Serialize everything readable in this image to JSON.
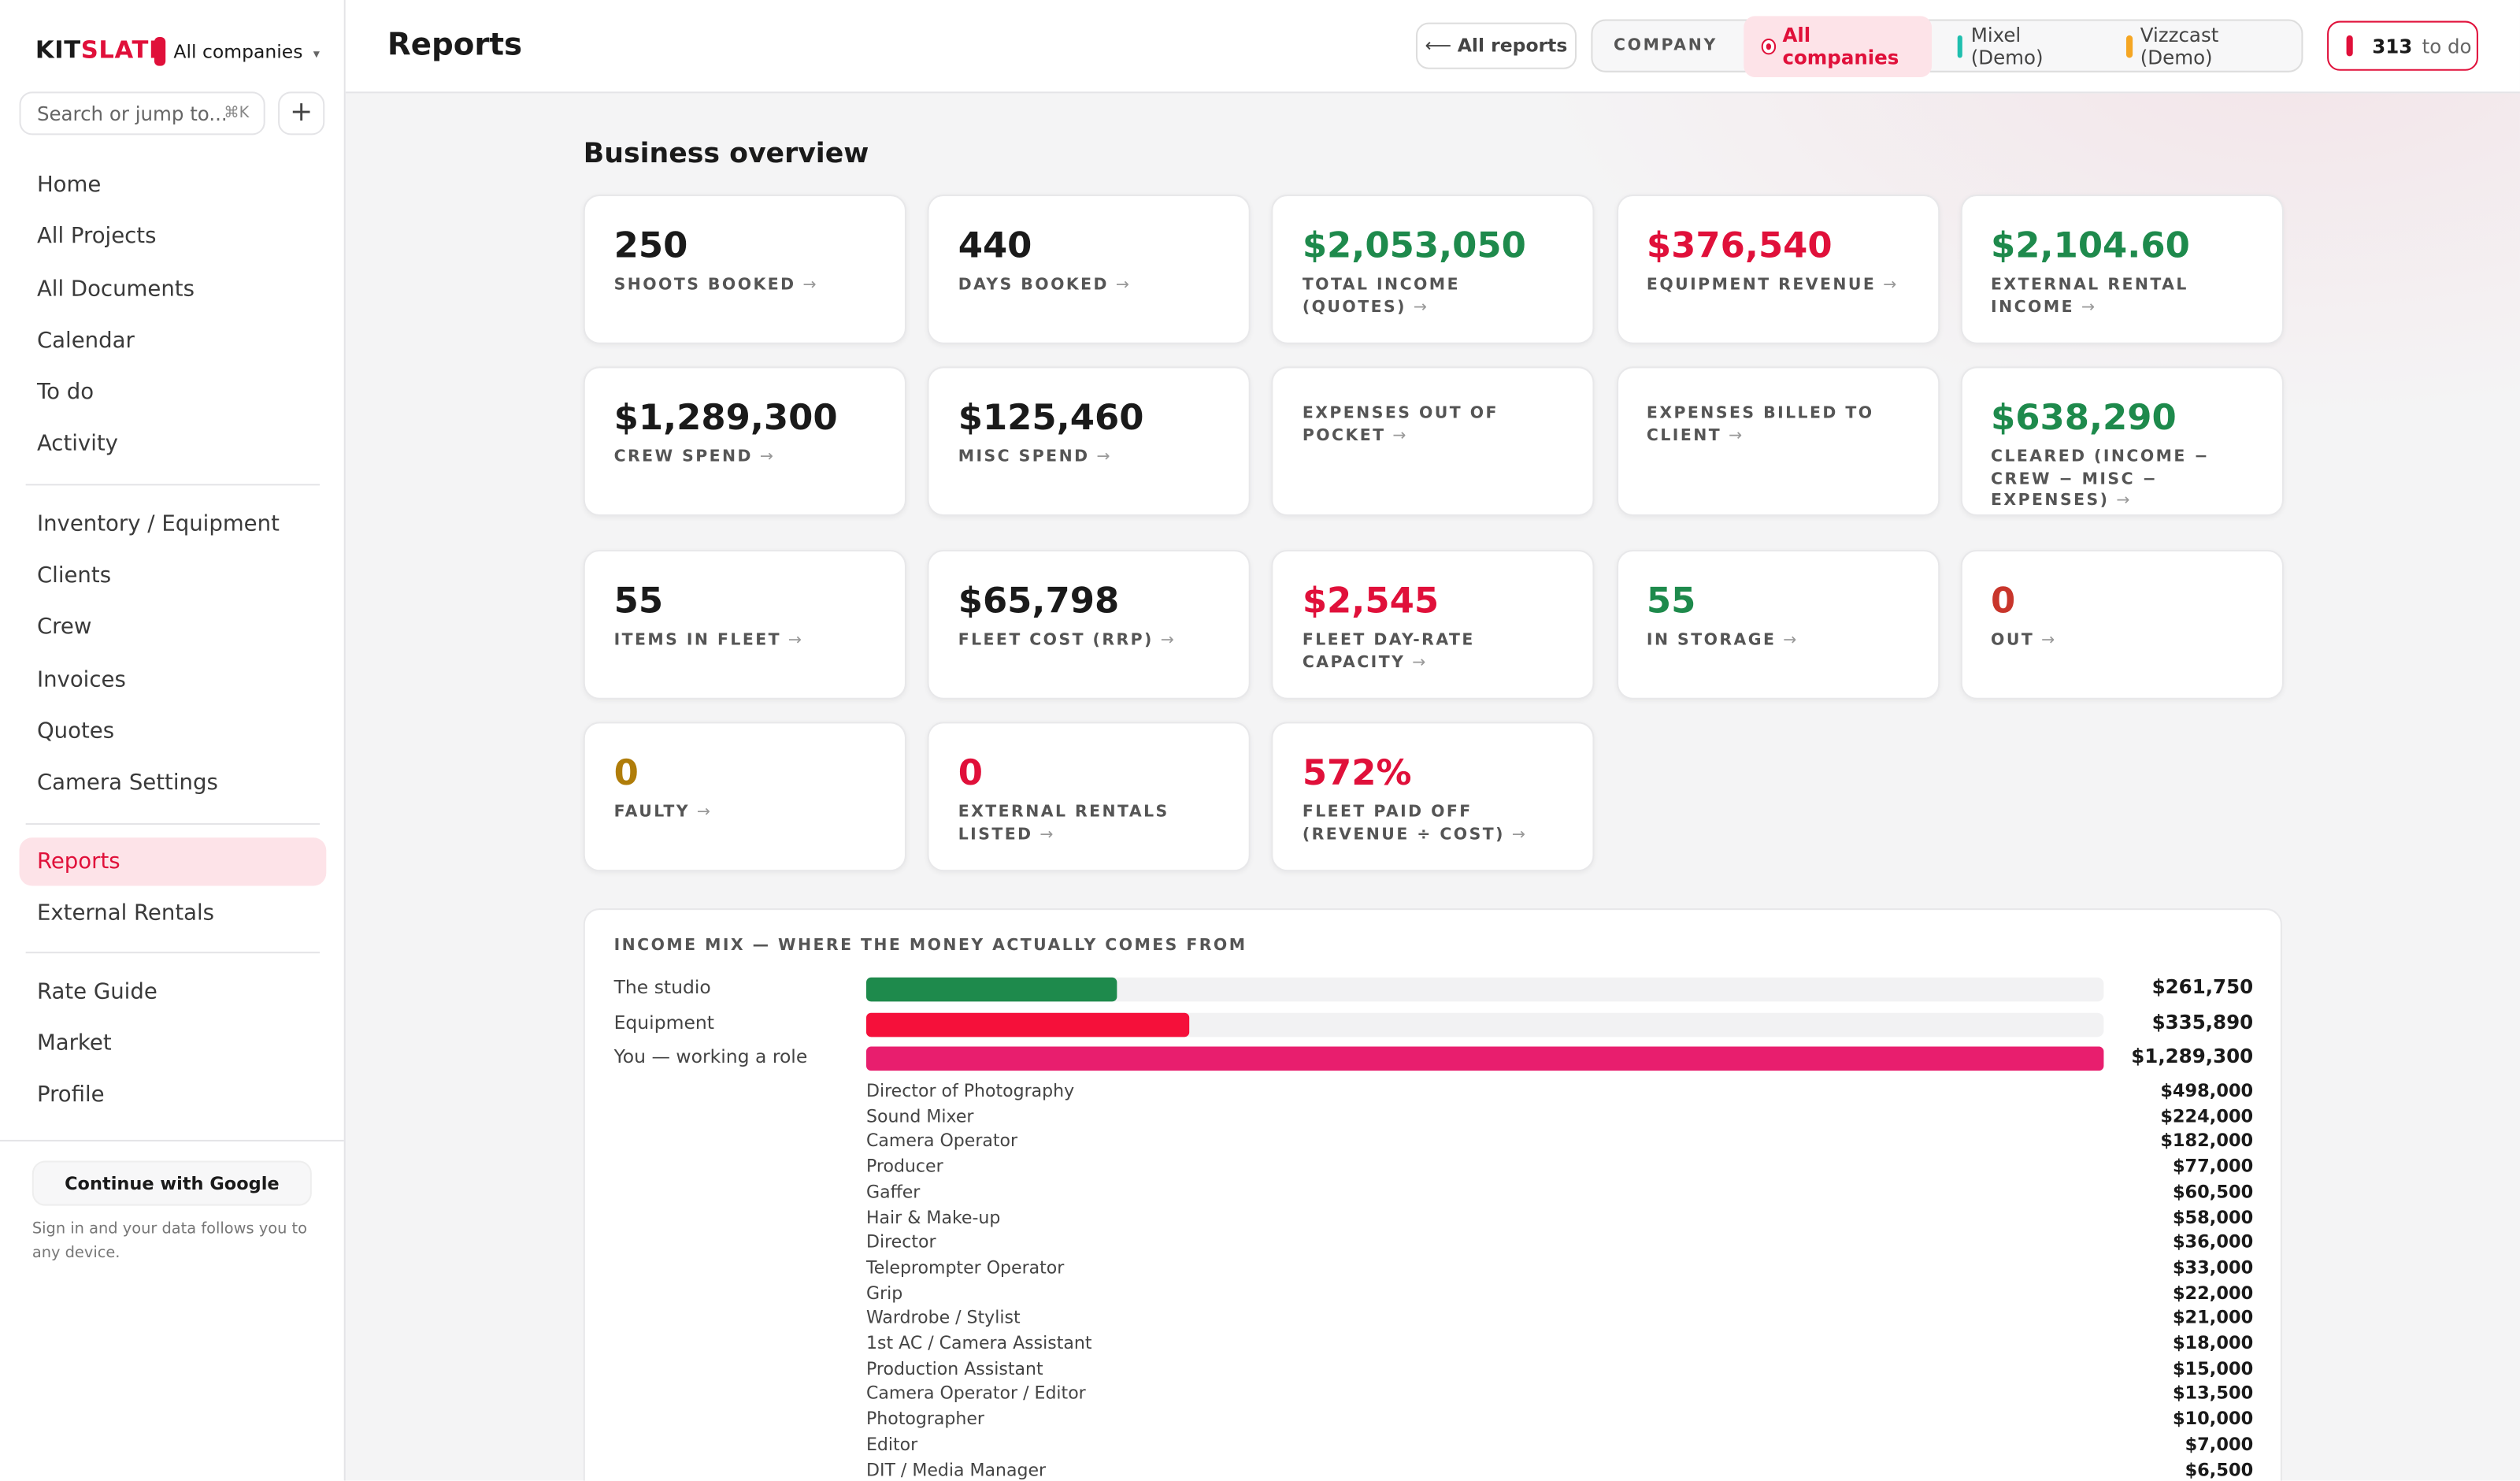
{
  "sidebar": {
    "brand": [
      "KIT",
      "SLATE"
    ],
    "company": "All companies",
    "search": "Search or jump to...",
    "shortcut": "⌘K",
    "add": "+",
    "nav": [
      [
        {
          "label": "Home"
        },
        {
          "label": "All Projects"
        },
        {
          "label": "All Documents"
        },
        {
          "label": "Calendar"
        },
        {
          "label": "To do"
        },
        {
          "label": "Activity"
        }
      ],
      [
        {
          "label": "Inventory / Equipment"
        },
        {
          "label": "Clients"
        },
        {
          "label": "Crew"
        },
        {
          "label": "Invoices"
        },
        {
          "label": "Quotes"
        },
        {
          "label": "Camera Settings"
        }
      ],
      [
        {
          "label": "Reports",
          "active": true
        },
        {
          "label": "External Rentals"
        }
      ],
      [
        {
          "label": "Rate Guide"
        },
        {
          "label": "Market"
        },
        {
          "label": "Profile"
        }
      ]
    ],
    "google_button": "Continue with Google",
    "signin_note": "Sign in and your data follows you to any device."
  },
  "header": {
    "title": "Reports",
    "back": "All reports",
    "company_label": "COMPANY",
    "companies": [
      {
        "name": "All companies",
        "color": "#e0103a",
        "active": true
      },
      {
        "name": "Mixel (Demo)",
        "color": "#1fbfae"
      },
      {
        "name": "Vizzcast (Demo)",
        "color": "#f5a623"
      }
    ],
    "todo_count": "313",
    "todo_label": "to do"
  },
  "overview": {
    "title": "Business overview",
    "groups": [
      [
        {
          "value": "250",
          "label": "SHOOTS BOOKED",
          "color": "#1a1a1a"
        },
        {
          "value": "440",
          "label": "DAYS BOOKED",
          "color": "#1a1a1a"
        },
        {
          "value": "$2,053,050",
          "label": "TOTAL INCOME (QUOTES)",
          "color": "#1e8a4c"
        },
        {
          "value": "$376,540",
          "label": "EQUIPMENT REVENUE",
          "color": "#e0103a"
        },
        {
          "value": "$2,104.60",
          "label": "EXTERNAL RENTAL INCOME",
          "color": "#1e8a4c"
        },
        {
          "value": "$1,289,300",
          "label": "CREW SPEND",
          "color": "#1a1a1a"
        },
        {
          "value": "$125,460",
          "label": "MISC SPEND",
          "color": "#1a1a1a"
        },
        {
          "label": "EXPENSES OUT OF POCKET"
        },
        {
          "label": "EXPENSES BILLED TO CLIENT"
        },
        {
          "value": "$638,290",
          "label": "CLEARED (INCOME − CREW − MISC − EXPENSES)",
          "color": "#1e8a4c"
        }
      ],
      [
        {
          "value": "55",
          "label": "ITEMS IN FLEET",
          "color": "#1a1a1a"
        },
        {
          "value": "$65,798",
          "label": "FLEET COST (RRP)",
          "color": "#1a1a1a"
        },
        {
          "value": "$2,545",
          "label": "FLEET DAY-RATE CAPACITY",
          "color": "#e0103a"
        },
        {
          "value": "55",
          "label": "IN STORAGE",
          "color": "#1e8a4c"
        },
        {
          "value": "0",
          "label": "OUT",
          "color": "#c8352b"
        },
        {
          "value": "0",
          "label": "FAULTY",
          "color": "#b07d0a"
        },
        {
          "value": "0",
          "label": "EXTERNAL RENTALS LISTED",
          "color": "#e0103a"
        },
        {
          "value": "572%",
          "label": "FLEET PAID OFF (REVENUE ÷ COST)",
          "color": "#e0103a"
        }
      ]
    ]
  },
  "income_mix": {
    "title": "INCOME MIX — WHERE THE MONEY ACTUALLY COMES FROM",
    "rows": [
      {
        "label": "The studio",
        "value": 261750,
        "value_label": "$261,750",
        "color": "#1e8a4c"
      },
      {
        "label": "Equipment",
        "value": 335890,
        "value_label": "$335,890",
        "color": "#f5103a"
      },
      {
        "label": "You — working a role",
        "value": 1289300,
        "value_label": "$1,289,300",
        "color": "#e81e6e"
      }
    ],
    "roles": [
      {
        "label": "Director of Photography",
        "value": "$498,000"
      },
      {
        "label": "Sound Mixer",
        "value": "$224,000"
      },
      {
        "label": "Camera Operator",
        "value": "$182,000"
      },
      {
        "label": "Producer",
        "value": "$77,000"
      },
      {
        "label": "Gaffer",
        "value": "$60,500"
      },
      {
        "label": "Hair & Make-up",
        "value": "$58,000"
      },
      {
        "label": "Director",
        "value": "$36,000"
      },
      {
        "label": "Teleprompter Operator",
        "value": "$33,000"
      },
      {
        "label": "Grip",
        "value": "$22,000"
      },
      {
        "label": "Wardrobe / Stylist",
        "value": "$21,000"
      },
      {
        "label": "1st AC / Camera Assistant",
        "value": "$18,000"
      },
      {
        "label": "Production Assistant",
        "value": "$15,000"
      },
      {
        "label": "Camera Operator / Editor",
        "value": "$13,500"
      },
      {
        "label": "Photographer",
        "value": "$10,000"
      },
      {
        "label": "Editor",
        "value": "$7,000"
      },
      {
        "label": "DIT / Media Manager",
        "value": "$6,500"
      }
    ]
  }
}
